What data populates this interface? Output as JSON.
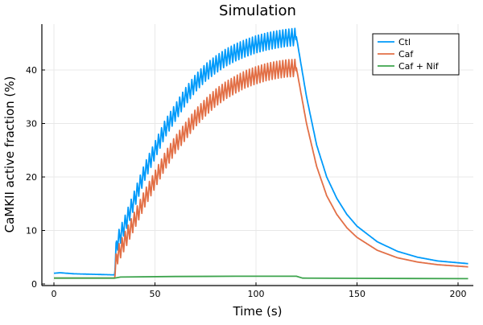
{
  "chart_data": {
    "type": "line",
    "title": "Simulation",
    "xlabel": "Time (s)",
    "ylabel": "CaMKII active fraction (%)",
    "xlim": [
      -5,
      210
    ],
    "ylim": [
      -0.3,
      48.5
    ],
    "xticks": [
      0,
      50,
      100,
      150,
      200
    ],
    "yticks": [
      0,
      10,
      20,
      30,
      40
    ],
    "grid": true,
    "legend_position": "top-right",
    "series": [
      {
        "name": "Ctl",
        "color": "#009AFA",
        "oscillating_between": [
          30,
          120
        ],
        "x": [
          0,
          3,
          10,
          20,
          30,
          31,
          35,
          40,
          45,
          50,
          55,
          60,
          65,
          70,
          75,
          80,
          85,
          90,
          95,
          100,
          105,
          110,
          115,
          120,
          125,
          130,
          135,
          140,
          145,
          150,
          160,
          170,
          180,
          190,
          205
        ],
        "y": [
          2.0,
          2.1,
          1.9,
          1.8,
          1.7,
          7.5,
          11,
          16,
          21,
          25,
          29,
          32,
          35,
          37.5,
          39.5,
          41,
          42.3,
          43.3,
          44.1,
          44.8,
          45.3,
          45.7,
          46,
          46.2,
          35,
          26,
          20,
          16,
          13,
          10.8,
          7.9,
          6.1,
          5,
          4.3,
          3.8
        ]
      },
      {
        "name": "Caf",
        "color": "#E26F46",
        "oscillating_between": [
          30,
          120
        ],
        "x": [
          0,
          10,
          20,
          30,
          31,
          35,
          40,
          45,
          50,
          55,
          60,
          65,
          70,
          75,
          80,
          85,
          90,
          95,
          100,
          105,
          110,
          115,
          120,
          125,
          130,
          135,
          140,
          145,
          150,
          160,
          170,
          180,
          190,
          205
        ],
        "y": [
          1.1,
          1.1,
          1.1,
          1.1,
          5,
          8,
          12,
          16,
          19.5,
          23,
          26,
          28.5,
          31,
          33,
          34.8,
          36.2,
          37.3,
          38.3,
          39,
          39.6,
          40,
          40.3,
          40.4,
          30,
          22,
          16.5,
          13,
          10.5,
          8.7,
          6.3,
          4.9,
          4.1,
          3.6,
          3.2
        ]
      },
      {
        "name": "Caf + Nif",
        "color": "#3DA44D",
        "x": [
          0,
          30,
          33,
          60,
          90,
          120,
          123,
          150,
          205
        ],
        "y": [
          1.1,
          1.1,
          1.3,
          1.4,
          1.45,
          1.45,
          1.1,
          1.05,
          1.0
        ]
      }
    ]
  }
}
